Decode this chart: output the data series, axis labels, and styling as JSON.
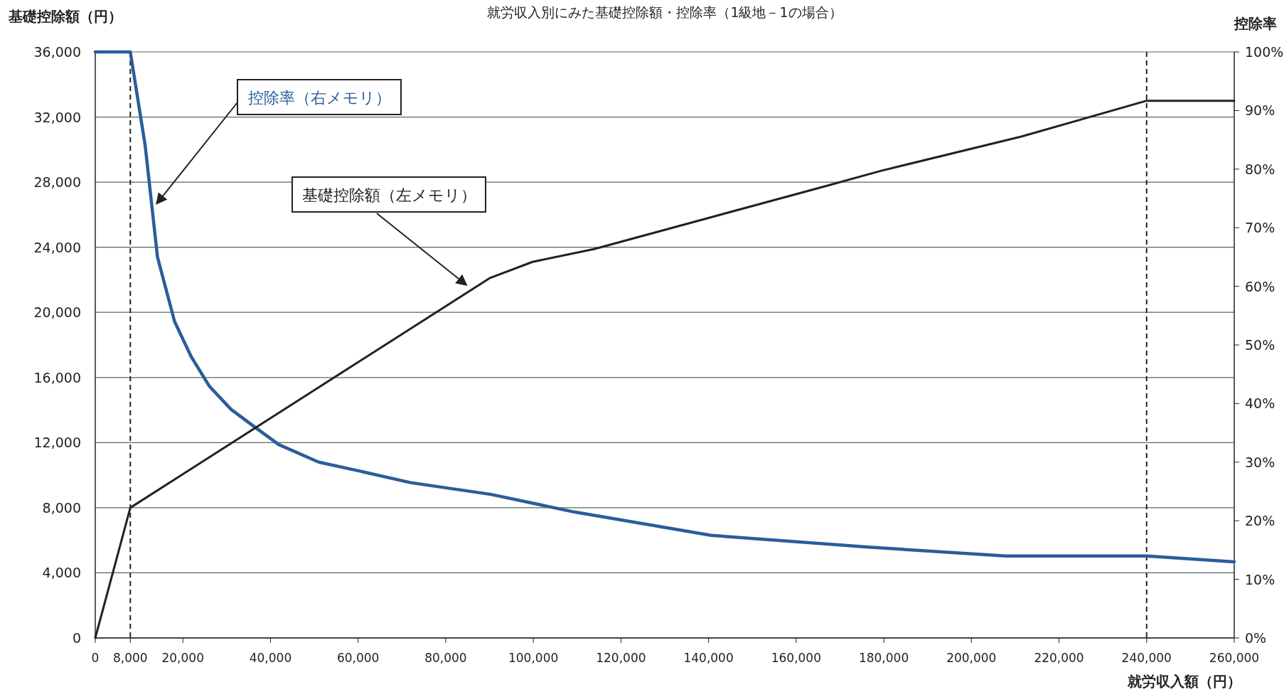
{
  "chart_data": {
    "type": "line",
    "title": "就労収入別にみた基礎控除額・控除率（1級地－1の場合）",
    "xlabel": "就労収入額（円）",
    "ylabel": "基礎控除額（円）",
    "y2label": "控除率",
    "series": [
      {
        "name": "控除率（右メモリ）",
        "color": "#2a5d9a",
        "axis": "y2",
        "x": [
          0,
          8000,
          11400,
          14200,
          18100,
          21900,
          26000,
          31000,
          36400,
          41900,
          51000,
          60200,
          72000,
          90300,
          109300,
          140600,
          176500,
          207800,
          240000,
          260000
        ],
        "values": [
          100,
          100,
          84,
          65,
          54,
          48,
          43,
          39,
          36,
          33,
          30,
          28.5,
          26.5,
          24.5,
          21.5,
          17.5,
          15.5,
          14,
          14,
          13
        ]
      },
      {
        "name": "基礎控除額（左メモリ）",
        "color": "#222222",
        "axis": "y",
        "x": [
          0,
          8000,
          90000,
          99800,
          114000,
          167300,
          179400,
          211400,
          240000,
          260000
        ],
        "values": [
          0,
          8000,
          22100,
          23100,
          23900,
          27800,
          28700,
          30800,
          33000,
          33000
        ]
      }
    ],
    "xlim": [
      0,
      260000
    ],
    "xticks": [
      {
        "value": 0,
        "label": "0"
      },
      {
        "value": 8000,
        "label": "8,000"
      },
      {
        "value": 20000,
        "label": "20,000"
      },
      {
        "value": 40000,
        "label": "40,000"
      },
      {
        "value": 60000,
        "label": "60,000"
      },
      {
        "value": 80000,
        "label": "80,000"
      },
      {
        "value": 100000,
        "label": "100,000"
      },
      {
        "value": 120000,
        "label": "120,000"
      },
      {
        "value": 140000,
        "label": "140,000"
      },
      {
        "value": 160000,
        "label": "160,000"
      },
      {
        "value": 180000,
        "label": "180,000"
      },
      {
        "value": 200000,
        "label": "200,000"
      },
      {
        "value": 220000,
        "label": "220,000"
      },
      {
        "value": 240000,
        "label": "240,000"
      },
      {
        "value": 260000,
        "label": "260,000"
      }
    ],
    "ylim": [
      0,
      36000
    ],
    "yticks": [
      {
        "value": 0,
        "label": "0"
      },
      {
        "value": 4000,
        "label": "4,000"
      },
      {
        "value": 8000,
        "label": "8,000"
      },
      {
        "value": 12000,
        "label": "12,000"
      },
      {
        "value": 16000,
        "label": "16,000"
      },
      {
        "value": 20000,
        "label": "20,000"
      },
      {
        "value": 24000,
        "label": "24,000"
      },
      {
        "value": 28000,
        "label": "28,000"
      },
      {
        "value": 32000,
        "label": "32,000"
      },
      {
        "value": 36000,
        "label": "36,000"
      }
    ],
    "y2lim": [
      0,
      100
    ],
    "y2ticks": [
      {
        "value": 0,
        "label": "0%"
      },
      {
        "value": 10,
        "label": "10%"
      },
      {
        "value": 20,
        "label": "20%"
      },
      {
        "value": 30,
        "label": "30%"
      },
      {
        "value": 40,
        "label": "40%"
      },
      {
        "value": 50,
        "label": "50%"
      },
      {
        "value": 60,
        "label": "60%"
      },
      {
        "value": 70,
        "label": "70%"
      },
      {
        "value": 80,
        "label": "80%"
      },
      {
        "value": 90,
        "label": "90%"
      },
      {
        "value": 100,
        "label": "100%"
      }
    ],
    "grid": "y",
    "ref_lines": [
      {
        "axis": "x",
        "value": 8000,
        "line_style": "dashed"
      },
      {
        "axis": "x",
        "value": 240000,
        "line_style": "dashed"
      }
    ]
  }
}
